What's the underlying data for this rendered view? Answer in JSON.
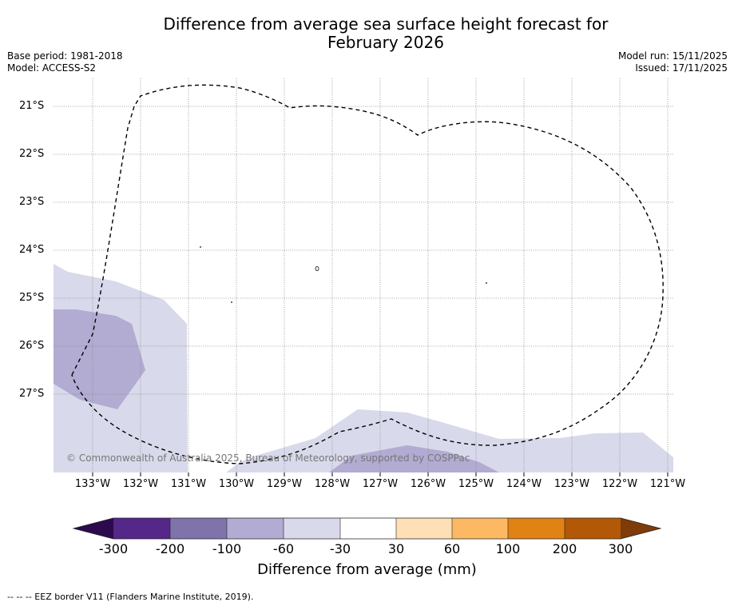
{
  "title_line1": "Difference from average sea surface height forecast for",
  "title_line2": "February 2026",
  "base_period": "Base period: 1981-2018",
  "model": "Model: ACCESS-S2",
  "model_run": "Model run: 15/11/2025",
  "issued": "Issued: 17/11/2025",
  "lat_labels": [
    "21°S",
    "22°S",
    "23°S",
    "24°S",
    "25°S",
    "26°S",
    "27°S"
  ],
  "lon_labels": [
    "133°W",
    "132°W",
    "131°W",
    "130°W",
    "129°W",
    "128°W",
    "127°W",
    "126°W",
    "125°W",
    "124°W",
    "123°W",
    "122°W",
    "121°W"
  ],
  "attribution": "© Commonwealth of Australia 2025, Bureau of Meteorology, supported by COSPPac",
  "colorbar": {
    "title": "Difference from average (mm)",
    "labels": [
      "-300",
      "-200",
      "-100",
      "-60",
      "-30",
      "30",
      "60",
      "100",
      "200",
      "300"
    ],
    "under_color": "#2d0a4e",
    "over_color": "#7f3b08",
    "colors": [
      "#542788",
      "#8073ac",
      "#b2abd2",
      "#d8daeb",
      "#ffffff",
      "#fee0b6",
      "#fdb863",
      "#e08214",
      "#b35806"
    ]
  },
  "footnote": "-- -- -- EEZ border V11 (Flanders Marine Institute, 2019)."
}
